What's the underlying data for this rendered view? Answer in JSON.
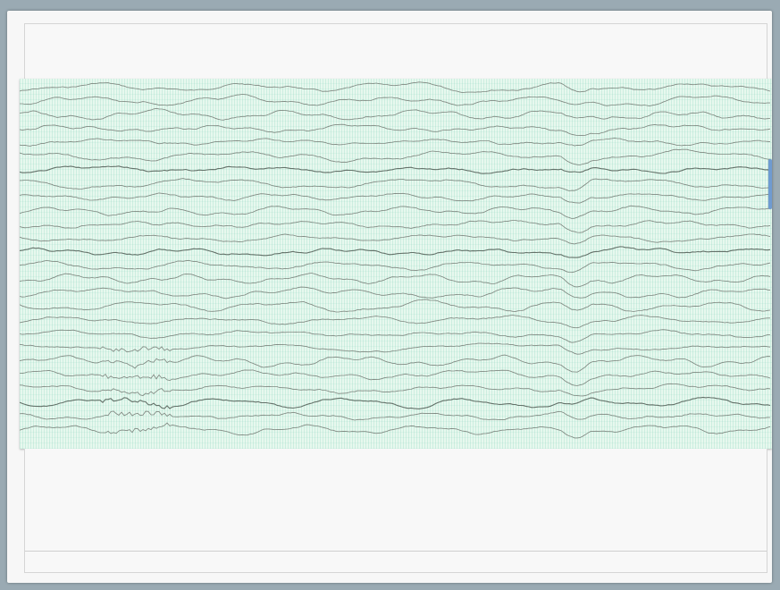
{
  "viewer": {
    "channel_count": 26,
    "trace_color": "#6f756f",
    "dark_trace_color": "#4d5a52",
    "background_color": "#e7f8ee",
    "scrollbar_color": "#6f9bd1"
  }
}
